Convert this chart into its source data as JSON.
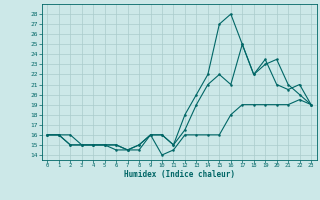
{
  "xlabel": "Humidex (Indice chaleur)",
  "bg_color": "#cce8e8",
  "grid_color": "#aacccc",
  "line_color": "#006666",
  "xlim": [
    -0.5,
    23.5
  ],
  "ylim": [
    13.5,
    29
  ],
  "yticks": [
    14,
    15,
    16,
    17,
    18,
    19,
    20,
    21,
    22,
    23,
    24,
    25,
    26,
    27,
    28
  ],
  "xticks": [
    0,
    1,
    2,
    3,
    4,
    5,
    6,
    7,
    8,
    9,
    10,
    11,
    12,
    13,
    14,
    15,
    16,
    17,
    18,
    19,
    20,
    21,
    22,
    23
  ],
  "line1_x": [
    0,
    1,
    2,
    3,
    4,
    5,
    6,
    7,
    8,
    9,
    10,
    11,
    12,
    13,
    14,
    15,
    16,
    17,
    18,
    19,
    20,
    21,
    22,
    23
  ],
  "line1_y": [
    16,
    16,
    16,
    15,
    15,
    15,
    14.5,
    14.5,
    14.5,
    16,
    14,
    14.5,
    16,
    16,
    16,
    16,
    18,
    19,
    19,
    19,
    19,
    19,
    19.5,
    19
  ],
  "line2_x": [
    0,
    1,
    2,
    3,
    4,
    5,
    6,
    7,
    8,
    9,
    10,
    11,
    12,
    13,
    14,
    15,
    16,
    17,
    18,
    19,
    20,
    21,
    22,
    23
  ],
  "line2_y": [
    16,
    16,
    15,
    15,
    15,
    15,
    15,
    14.5,
    15,
    16,
    16,
    15,
    16.5,
    19,
    21,
    22,
    21,
    25,
    22,
    23,
    23.5,
    21,
    20,
    19
  ],
  "line3_x": [
    0,
    1,
    2,
    3,
    4,
    5,
    6,
    7,
    8,
    9,
    10,
    11,
    12,
    13,
    14,
    15,
    16,
    17,
    18,
    19,
    20,
    21,
    22,
    23
  ],
  "line3_y": [
    16,
    16,
    15,
    15,
    15,
    15,
    15,
    14.5,
    15,
    16,
    16,
    15,
    18,
    20,
    22,
    27,
    28,
    25,
    22,
    23.5,
    21,
    20.5,
    21,
    19
  ]
}
